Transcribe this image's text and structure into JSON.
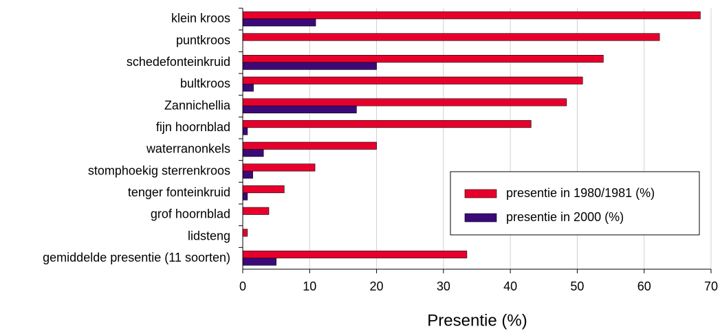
{
  "chart_data": {
    "type": "hbar",
    "xlabel": "Presentie (%)",
    "categories": [
      "klein kroos",
      "puntkroos",
      "schedefonteinkruid",
      "bultkroos",
      "Zannichellia",
      "fijn hoornblad",
      "waterranonkels",
      "stomphoekig sterrenkroos",
      "tenger fonteinkruid",
      "grof hoornblad",
      "lidsteng",
      "gemiddelde presentie (11 soorten)"
    ],
    "series": [
      {
        "name": "presentie in 1980/1981 (%)",
        "color": "#e8002c",
        "values": [
          68.4,
          62.3,
          53.9,
          50.8,
          48.4,
          43.1,
          20.0,
          10.8,
          6.2,
          3.9,
          0.7,
          33.5
        ]
      },
      {
        "name": "presentie in 2000 (%)",
        "color": "#3c0a78",
        "values": [
          10.9,
          0,
          20.0,
          1.6,
          17.0,
          0.7,
          3.1,
          1.5,
          0.7,
          0,
          0,
          5.0
        ]
      }
    ],
    "xlim": [
      0,
      70
    ],
    "xticks": [
      0,
      10,
      20,
      30,
      40,
      50,
      60,
      70
    ],
    "grid": true
  }
}
